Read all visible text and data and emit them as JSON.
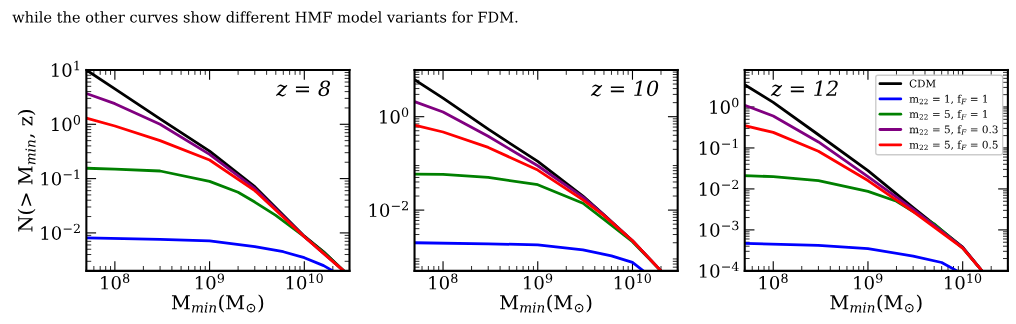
{
  "chart_data": [
    {
      "type": "line",
      "xlabel": "M$_{min}$(M$_{⊙}$)",
      "ylabel": "N(> M$_{min}$, z)",
      "log": "xy",
      "xlim": [
        50000000.0,
        30000000000.0
      ],
      "ylim": [
        0.002,
        10
      ],
      "xticks": [
        {
          "value": 100000000.0,
          "label": "10$^{8}$"
        },
        {
          "value": 1000000000.0,
          "label": "10$^{9}$"
        },
        {
          "value": 10000000000.0,
          "label": "10$^{10}$"
        }
      ],
      "yticks": [
        {
          "value": 10,
          "label": "10$^{1}$"
        },
        {
          "value": 1,
          "label": "10$^{0}$"
        },
        {
          "value": 0.1,
          "label": "10$^{−1}$"
        },
        {
          "value": 0.01,
          "label": "10$^{−2}$"
        }
      ],
      "annotations": [
        "z = 8",
        "while the other curves show different HMF model variants for FDM."
      ],
      "legend": false,
      "grid": false,
      "series": [
        {
          "color": "#000000",
          "x": [
            50000000.0,
            100000000.0,
            300000000.0,
            1000000000.0,
            3000000000.0,
            10000000000.0,
            16000000000.0,
            26000000000.0
          ],
          "values": [
            10,
            4.5,
            1.26,
            0.32,
            0.071,
            0.0087,
            0.0045,
            0.002
          ]
        },
        {
          "color": "#0000ff",
          "x": [
            50000000.0,
            300000000.0,
            1000000000.0,
            3000000000.0,
            6000000000.0,
            10000000000.0,
            16000000000.0,
            20000000000.0
          ],
          "values": [
            0.0081,
            0.0076,
            0.0071,
            0.0056,
            0.0045,
            0.0035,
            0.0025,
            0.002
          ]
        },
        {
          "color": "#008000",
          "x": [
            50000000.0,
            100000000.0,
            300000000.0,
            1000000000.0,
            2000000000.0,
            3000000000.0,
            5000000000.0,
            10000000000.0,
            16000000000.0,
            26000000000.0
          ],
          "values": [
            0.155,
            0.15,
            0.138,
            0.089,
            0.056,
            0.037,
            0.021,
            0.0085,
            0.0044,
            0.002
          ]
        },
        {
          "color": "#800080",
          "x": [
            50000000.0,
            100000000.0,
            300000000.0,
            1000000000.0,
            3000000000.0,
            10000000000.0,
            26000000000.0
          ],
          "values": [
            3.7,
            2.4,
            1.0,
            0.28,
            0.066,
            0.0085,
            0.002
          ]
        },
        {
          "color": "#ff0000",
          "x": [
            50000000.0,
            100000000.0,
            300000000.0,
            1000000000.0,
            3000000000.0,
            10000000000.0,
            26000000000.0
          ],
          "values": [
            1.3,
            0.93,
            0.5,
            0.22,
            0.06,
            0.0085,
            0.002
          ]
        }
      ]
    },
    {
      "type": "line",
      "xlabel": "M$_{min}$(M$_{⊙}$)",
      "log": "xy",
      "xlim": [
        50000000.0,
        30000000000.0
      ],
      "ylim": [
        0.0005,
        10
      ],
      "xticks": [
        {
          "value": 100000000.0,
          "label": "10$^{8}$"
        },
        {
          "value": 1000000000.0,
          "label": "10$^{9}$"
        },
        {
          "value": 10000000000.0,
          "label": "10$^{10}$"
        }
      ],
      "yticks": [
        {
          "value": 1,
          "label": "10$^{0}$"
        },
        {
          "value": 0.01,
          "label": "10$^{−2}$"
        }
      ],
      "annotations": [
        "z = 10"
      ],
      "legend": false,
      "grid": false,
      "series": [
        {
          "color": "#000000",
          "x": [
            50000000.0,
            100000000.0,
            300000000.0,
            1000000000.0,
            3000000000.0,
            5000000000.0,
            10000000000.0,
            20000000000.0
          ],
          "values": [
            6.2,
            2.5,
            0.54,
            0.11,
            0.02,
            0.0079,
            0.0022,
            0.0005
          ]
        },
        {
          "color": "#0000ff",
          "x": [
            50000000.0,
            300000000.0,
            1000000000.0,
            3000000000.0,
            6000000000.0,
            10000000000.0,
            13000000000.0
          ],
          "values": [
            0.002,
            0.0019,
            0.0018,
            0.0014,
            0.00105,
            0.00076,
            0.0005
          ]
        },
        {
          "color": "#008000",
          "x": [
            50000000.0,
            100000000.0,
            300000000.0,
            1000000000.0,
            3000000000.0,
            5000000000.0,
            10000000000.0,
            20000000000.0
          ],
          "values": [
            0.059,
            0.058,
            0.05,
            0.035,
            0.014,
            0.0063,
            0.0021,
            0.0005
          ]
        },
        {
          "color": "#800080",
          "x": [
            50000000.0,
            100000000.0,
            300000000.0,
            1000000000.0,
            3000000000.0,
            5000000000.0,
            10000000000.0,
            20000000000.0
          ],
          "values": [
            2.1,
            1.26,
            0.38,
            0.089,
            0.019,
            0.0078,
            0.0022,
            0.0005
          ]
        },
        {
          "color": "#ff0000",
          "x": [
            50000000.0,
            100000000.0,
            300000000.0,
            1000000000.0,
            3000000000.0,
            5000000000.0,
            10000000000.0,
            20000000000.0
          ],
          "values": [
            0.66,
            0.47,
            0.22,
            0.072,
            0.0166,
            0.0076,
            0.0022,
            0.0005
          ]
        }
      ]
    },
    {
      "type": "line",
      "xlabel": "M$_{min}$(M$_{⊙}$)",
      "log": "xy",
      "xlim": [
        50000000.0,
        30000000000.0
      ],
      "ylim": [
        0.0001,
        8
      ],
      "xticks": [
        {
          "value": 100000000.0,
          "label": "10$^{8}$"
        },
        {
          "value": 1000000000.0,
          "label": "10$^{9}$"
        },
        {
          "value": 10000000000.0,
          "label": "10$^{10}$"
        }
      ],
      "yticks": [
        {
          "value": 1,
          "label": "10$^{0}$"
        },
        {
          "value": 0.1,
          "label": "10$^{−1}$"
        },
        {
          "value": 0.01,
          "label": "10$^{−2}$"
        },
        {
          "value": 0.001,
          "label": "10$^{−3}$"
        },
        {
          "value": 0.0001,
          "label": "10$^{−4}$"
        }
      ],
      "annotations": [
        "z = 12"
      ],
      "legend": "top right",
      "grid": false,
      "series": [
        {
          "name": "CDM",
          "color": "#000000",
          "x": [
            50000000.0,
            100000000.0,
            300000000.0,
            1000000000.0,
            3000000000.0,
            10000000000.0,
            16000000000.0
          ],
          "values": [
            3.5,
            1.3,
            0.21,
            0.028,
            0.0035,
            0.00038,
            0.0001
          ]
        },
        {
          "name": "m$_{22}$ = 1, f$_{F}$ = 1",
          "color": "#0000ff",
          "x": [
            50000000.0,
            300000000.0,
            1000000000.0,
            3000000000.0,
            6000000000.0,
            8700000000.0
          ],
          "values": [
            0.00047,
            0.00042,
            0.00035,
            0.00023,
            0.00016,
            0.0001
          ]
        },
        {
          "name": "m$_{22}$ = 5, f$_{F}$ = 1",
          "color": "#008000",
          "x": [
            50000000.0,
            100000000.0,
            300000000.0,
            1000000000.0,
            2000000000.0,
            3000000000.0,
            5000000000.0,
            10000000000.0,
            16000000000.0
          ],
          "values": [
            0.021,
            0.02,
            0.016,
            0.0087,
            0.005,
            0.0028,
            0.0014,
            0.00036,
            0.0001
          ]
        },
        {
          "name": "m$_{22}$ = 5, f$_{F}$ = 0.3",
          "color": "#800080",
          "x": [
            50000000.0,
            100000000.0,
            300000000.0,
            1000000000.0,
            3000000000.0,
            10000000000.0,
            16000000000.0
          ],
          "values": [
            1.1,
            0.6,
            0.14,
            0.02,
            0.0032,
            0.00037,
            0.0001
          ]
        },
        {
          "name": "m$_{22}$ = 5, f$_{F}$ = 0.5",
          "color": "#ff0000",
          "x": [
            50000000.0,
            100000000.0,
            300000000.0,
            1000000000.0,
            3000000000.0,
            10000000000.0,
            16000000000.0
          ],
          "values": [
            0.35,
            0.24,
            0.083,
            0.016,
            0.0028,
            0.00036,
            0.0001
          ]
        }
      ]
    }
  ]
}
